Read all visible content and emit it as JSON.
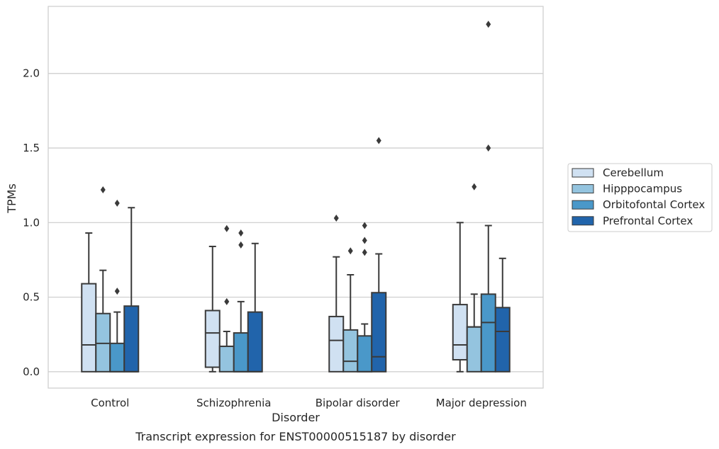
{
  "chart_data": {
    "type": "box",
    "caption": "Transcript expression for ENST00000515187 by disorder",
    "xlabel": "Disorder",
    "ylabel": "TPMs",
    "ylim": [
      -0.11,
      2.45
    ],
    "yticks": [
      "0.0",
      "0.5",
      "1.0",
      "1.5",
      "2.0"
    ],
    "grid": "horizontal",
    "legend_position": "right",
    "categories": [
      "Control",
      "Schizophrenia",
      "Bipolar disorder",
      "Major depression"
    ],
    "series": [
      {
        "name": "Cerebellum",
        "color": "#d0e1f2",
        "boxes": [
          {
            "low": 0.0,
            "q1": 0.0,
            "median": 0.18,
            "q3": 0.59,
            "high": 0.93,
            "outliers": []
          },
          {
            "low": 0.0,
            "q1": 0.03,
            "median": 0.26,
            "q3": 0.41,
            "high": 0.84,
            "outliers": []
          },
          {
            "low": 0.0,
            "q1": 0.0,
            "median": 0.21,
            "q3": 0.37,
            "high": 0.77,
            "outliers": [
              1.03
            ]
          },
          {
            "low": 0.0,
            "q1": 0.08,
            "median": 0.18,
            "q3": 0.45,
            "high": 1.0,
            "outliers": []
          }
        ]
      },
      {
        "name": "Hipppocampus",
        "color": "#94c4df",
        "boxes": [
          {
            "low": 0.0,
            "q1": 0.0,
            "median": 0.19,
            "q3": 0.39,
            "high": 0.68,
            "outliers": [
              1.22
            ]
          },
          {
            "low": 0.0,
            "q1": 0.0,
            "median": 0.17,
            "q3": 0.17,
            "high": 0.27,
            "outliers": [
              0.47,
              0.96
            ]
          },
          {
            "low": 0.0,
            "q1": 0.0,
            "median": 0.07,
            "q3": 0.28,
            "high": 0.65,
            "outliers": [
              0.81
            ]
          },
          {
            "low": 0.0,
            "q1": 0.0,
            "median": 0.3,
            "q3": 0.3,
            "high": 0.52,
            "outliers": [
              1.24
            ]
          }
        ]
      },
      {
        "name": "Orbitofontal Cortex",
        "color": "#4a98c9",
        "boxes": [
          {
            "low": 0.0,
            "q1": 0.0,
            "median": 0.0,
            "q3": 0.19,
            "high": 0.4,
            "outliers": [
              0.54,
              1.13
            ]
          },
          {
            "low": 0.0,
            "q1": 0.0,
            "median": 0.0,
            "q3": 0.26,
            "high": 0.47,
            "outliers": [
              0.85,
              0.93
            ]
          },
          {
            "low": 0.0,
            "q1": 0.0,
            "median": 0.0,
            "q3": 0.24,
            "high": 0.32,
            "outliers": [
              0.8,
              0.88,
              0.98
            ]
          },
          {
            "low": 0.0,
            "q1": 0.0,
            "median": 0.33,
            "q3": 0.52,
            "high": 0.98,
            "outliers": [
              1.5,
              2.33
            ]
          }
        ]
      },
      {
        "name": "Prefrontal Cortex",
        "color": "#2164ab",
        "boxes": [
          {
            "low": 0.0,
            "q1": 0.0,
            "median": 0.0,
            "q3": 0.44,
            "high": 1.1,
            "outliers": []
          },
          {
            "low": 0.0,
            "q1": 0.0,
            "median": 0.0,
            "q3": 0.4,
            "high": 0.86,
            "outliers": []
          },
          {
            "low": 0.0,
            "q1": 0.0,
            "median": 0.1,
            "q3": 0.53,
            "high": 0.79,
            "outliers": [
              1.55
            ]
          },
          {
            "low": 0.0,
            "q1": 0.0,
            "median": 0.27,
            "q3": 0.43,
            "high": 0.76,
            "outliers": []
          }
        ]
      }
    ]
  }
}
